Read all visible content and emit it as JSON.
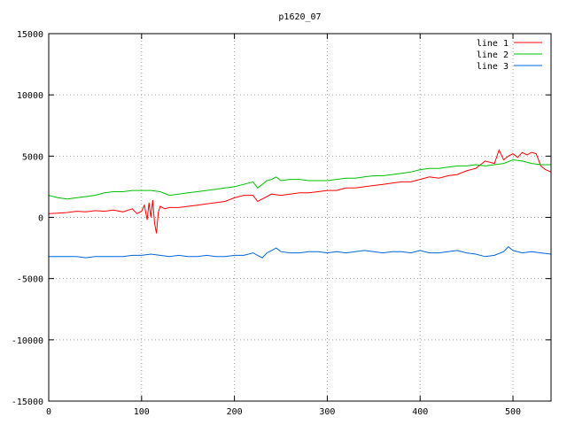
{
  "chart_data": {
    "type": "line",
    "title": "p1620_07",
    "xlabel": "",
    "ylabel": "",
    "xlim": [
      0,
      541
    ],
    "ylim": [
      -15000,
      15000
    ],
    "xticks": [
      0,
      100,
      200,
      300,
      400,
      500
    ],
    "yticks": [
      -15000,
      -10000,
      -5000,
      0,
      5000,
      10000,
      15000
    ],
    "grid": true,
    "legend_position": "top-right",
    "series": [
      {
        "name": "line 1",
        "color": "#ff0000",
        "x": [
          0,
          10,
          20,
          30,
          40,
          50,
          60,
          70,
          80,
          90,
          95,
          100,
          103,
          106,
          108,
          110,
          112,
          114,
          116,
          118,
          120,
          125,
          130,
          140,
          150,
          160,
          170,
          180,
          190,
          200,
          210,
          220,
          225,
          230,
          235,
          240,
          250,
          260,
          270,
          280,
          290,
          300,
          310,
          320,
          330,
          340,
          350,
          360,
          370,
          380,
          390,
          400,
          410,
          420,
          430,
          440,
          450,
          460,
          470,
          480,
          485,
          490,
          495,
          500,
          505,
          510,
          515,
          520,
          525,
          530,
          535,
          541
        ],
        "values": [
          300,
          350,
          400,
          500,
          450,
          550,
          500,
          600,
          450,
          700,
          300,
          500,
          1000,
          -200,
          1200,
          0,
          1400,
          -500,
          -1300,
          400,
          900,
          700,
          800,
          800,
          900,
          1000,
          1100,
          1200,
          1300,
          1600,
          1800,
          1800,
          1300,
          1500,
          1700,
          1900,
          1800,
          1900,
          2000,
          2000,
          2100,
          2200,
          2200,
          2400,
          2400,
          2500,
          2600,
          2700,
          2800,
          2900,
          2900,
          3100,
          3300,
          3200,
          3400,
          3500,
          3800,
          4000,
          4600,
          4400,
          5500,
          4700,
          5000,
          5200,
          4900,
          5300,
          5100,
          5300,
          5200,
          4200,
          3900,
          3700
        ]
      },
      {
        "name": "line 2",
        "color": "#00c000",
        "x": [
          0,
          10,
          20,
          30,
          40,
          50,
          60,
          70,
          80,
          90,
          100,
          110,
          120,
          130,
          140,
          150,
          160,
          170,
          180,
          190,
          200,
          210,
          220,
          225,
          230,
          235,
          240,
          245,
          250,
          260,
          270,
          280,
          290,
          300,
          310,
          320,
          330,
          340,
          350,
          360,
          370,
          380,
          390,
          400,
          410,
          420,
          430,
          440,
          450,
          460,
          470,
          480,
          490,
          500,
          510,
          520,
          530,
          541
        ],
        "values": [
          1800,
          1600,
          1500,
          1600,
          1700,
          1800,
          2000,
          2100,
          2100,
          2200,
          2200,
          2200,
          2100,
          1800,
          1900,
          2000,
          2100,
          2200,
          2300,
          2400,
          2500,
          2700,
          2900,
          2400,
          2700,
          3000,
          3100,
          3300,
          3000,
          3100,
          3100,
          3000,
          3000,
          3000,
          3100,
          3200,
          3200,
          3300,
          3400,
          3400,
          3500,
          3600,
          3700,
          3900,
          4000,
          4000,
          4100,
          4200,
          4200,
          4300,
          4200,
          4300,
          4400,
          4700,
          4600,
          4400,
          4300,
          4300
        ]
      },
      {
        "name": "line 3",
        "color": "#0066dd",
        "x": [
          0,
          10,
          20,
          30,
          40,
          50,
          60,
          70,
          80,
          90,
          100,
          110,
          120,
          130,
          140,
          150,
          160,
          170,
          180,
          190,
          200,
          210,
          220,
          225,
          230,
          235,
          240,
          245,
          250,
          260,
          270,
          280,
          290,
          300,
          310,
          320,
          330,
          340,
          350,
          360,
          370,
          380,
          390,
          400,
          410,
          420,
          430,
          440,
          450,
          460,
          470,
          480,
          490,
          495,
          500,
          510,
          520,
          530,
          541
        ],
        "values": [
          -3200,
          -3200,
          -3200,
          -3200,
          -3300,
          -3200,
          -3200,
          -3200,
          -3200,
          -3100,
          -3100,
          -3000,
          -3100,
          -3200,
          -3100,
          -3200,
          -3200,
          -3100,
          -3200,
          -3200,
          -3100,
          -3100,
          -2900,
          -3100,
          -3300,
          -2900,
          -2700,
          -2500,
          -2800,
          -2900,
          -2900,
          -2800,
          -2800,
          -2900,
          -2800,
          -2900,
          -2800,
          -2700,
          -2800,
          -2900,
          -2800,
          -2800,
          -2900,
          -2700,
          -2900,
          -2900,
          -2800,
          -2700,
          -2900,
          -3000,
          -3200,
          -3100,
          -2800,
          -2400,
          -2700,
          -2900,
          -2800,
          -2900,
          -3000
        ]
      }
    ]
  }
}
